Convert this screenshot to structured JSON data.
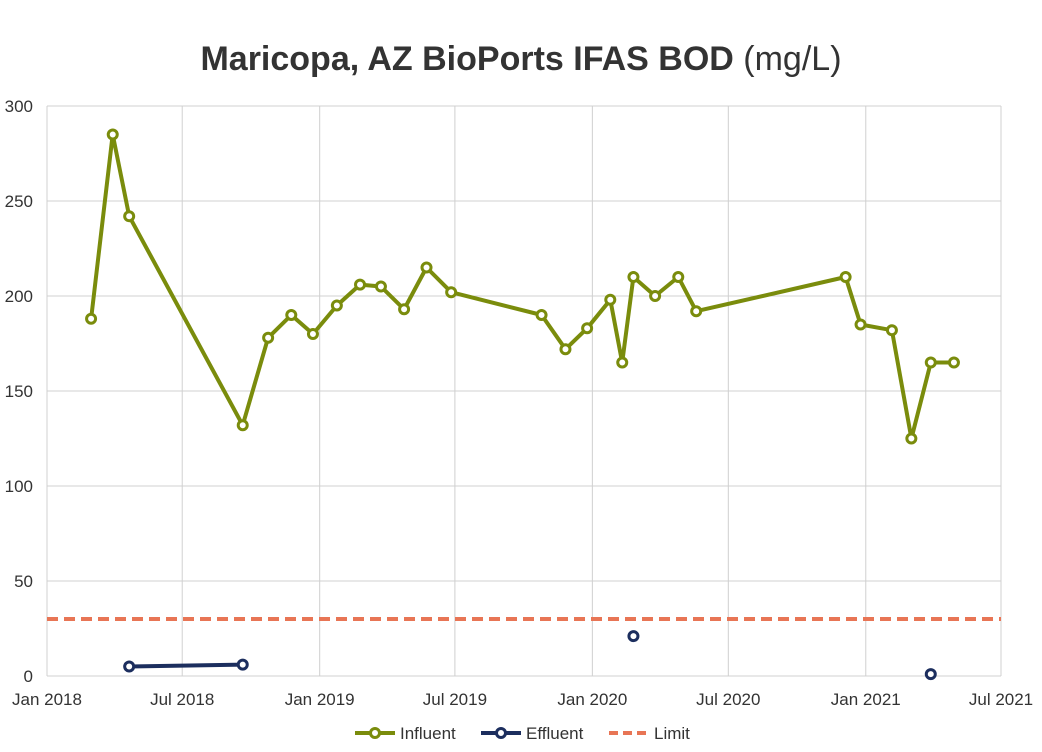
{
  "chart_data": {
    "type": "line",
    "title": "Maricopa, AZ BioPorts IFAS BOD",
    "title_unit": "(mg/L)",
    "xlabel": "",
    "ylabel": "",
    "ylim": [
      0,
      300
    ],
    "y_ticks": [
      0,
      50,
      100,
      150,
      200,
      250,
      300
    ],
    "xlim": [
      "2018-01-01",
      "2021-07-01"
    ],
    "x_ticks": [
      {
        "date": "2018-01-01",
        "label": "Jan 2018"
      },
      {
        "date": "2018-07-01",
        "label": "Jul 2018"
      },
      {
        "date": "2019-01-01",
        "label": "Jan 2019"
      },
      {
        "date": "2019-07-01",
        "label": "Jul 2019"
      },
      {
        "date": "2020-01-01",
        "label": "Jan 2020"
      },
      {
        "date": "2020-07-01",
        "label": "Jul 2020"
      },
      {
        "date": "2021-01-01",
        "label": "Jan 2021"
      },
      {
        "date": "2021-07-01",
        "label": "Jul 2021"
      }
    ],
    "grid": true,
    "legend_position": "bottom",
    "series": [
      {
        "name": "Influent",
        "color": "#7a8c0c",
        "marker": "circle-open",
        "points": [
          {
            "x": "2018-03-01",
            "y": 188
          },
          {
            "x": "2018-03-30",
            "y": 285
          },
          {
            "x": "2018-04-21",
            "y": 242
          },
          {
            "x": "2018-09-20",
            "y": 132
          },
          {
            "x": "2018-10-24",
            "y": 178
          },
          {
            "x": "2018-11-24",
            "y": 190
          },
          {
            "x": "2018-12-23",
            "y": 180
          },
          {
            "x": "2019-01-24",
            "y": 195
          },
          {
            "x": "2019-02-24",
            "y": 206
          },
          {
            "x": "2019-03-24",
            "y": 205
          },
          {
            "x": "2019-04-24",
            "y": 193
          },
          {
            "x": "2019-05-24",
            "y": 215
          },
          {
            "x": "2019-06-26",
            "y": 202
          },
          {
            "x": "2019-10-25",
            "y": 190
          },
          {
            "x": "2019-11-26",
            "y": 172
          },
          {
            "x": "2019-12-25",
            "y": 183
          },
          {
            "x": "2020-01-25",
            "y": 198
          },
          {
            "x": "2020-02-10",
            "y": 165
          },
          {
            "x": "2020-02-25",
            "y": 210
          },
          {
            "x": "2020-03-25",
            "y": 200
          },
          {
            "x": "2020-04-25",
            "y": 210
          },
          {
            "x": "2020-05-19",
            "y": 192
          },
          {
            "x": "2020-12-05",
            "y": 210
          },
          {
            "x": "2020-12-25",
            "y": 185
          },
          {
            "x": "2021-02-05",
            "y": 182
          },
          {
            "x": "2021-03-03",
            "y": 125
          },
          {
            "x": "2021-03-29",
            "y": 165
          },
          {
            "x": "2021-04-29",
            "y": 165
          }
        ]
      },
      {
        "name": "Effluent",
        "color": "#1c2e5e",
        "marker": "circle-open",
        "segments": [
          [
            {
              "x": "2018-04-21",
              "y": 5
            },
            {
              "x": "2018-09-20",
              "y": 6
            }
          ],
          [
            {
              "x": "2020-02-25",
              "y": 21
            }
          ],
          [
            {
              "x": "2021-03-29",
              "y": 1
            }
          ]
        ]
      },
      {
        "name": "Limit",
        "color": "#e87555",
        "style": "dashed",
        "value": 30
      }
    ]
  }
}
